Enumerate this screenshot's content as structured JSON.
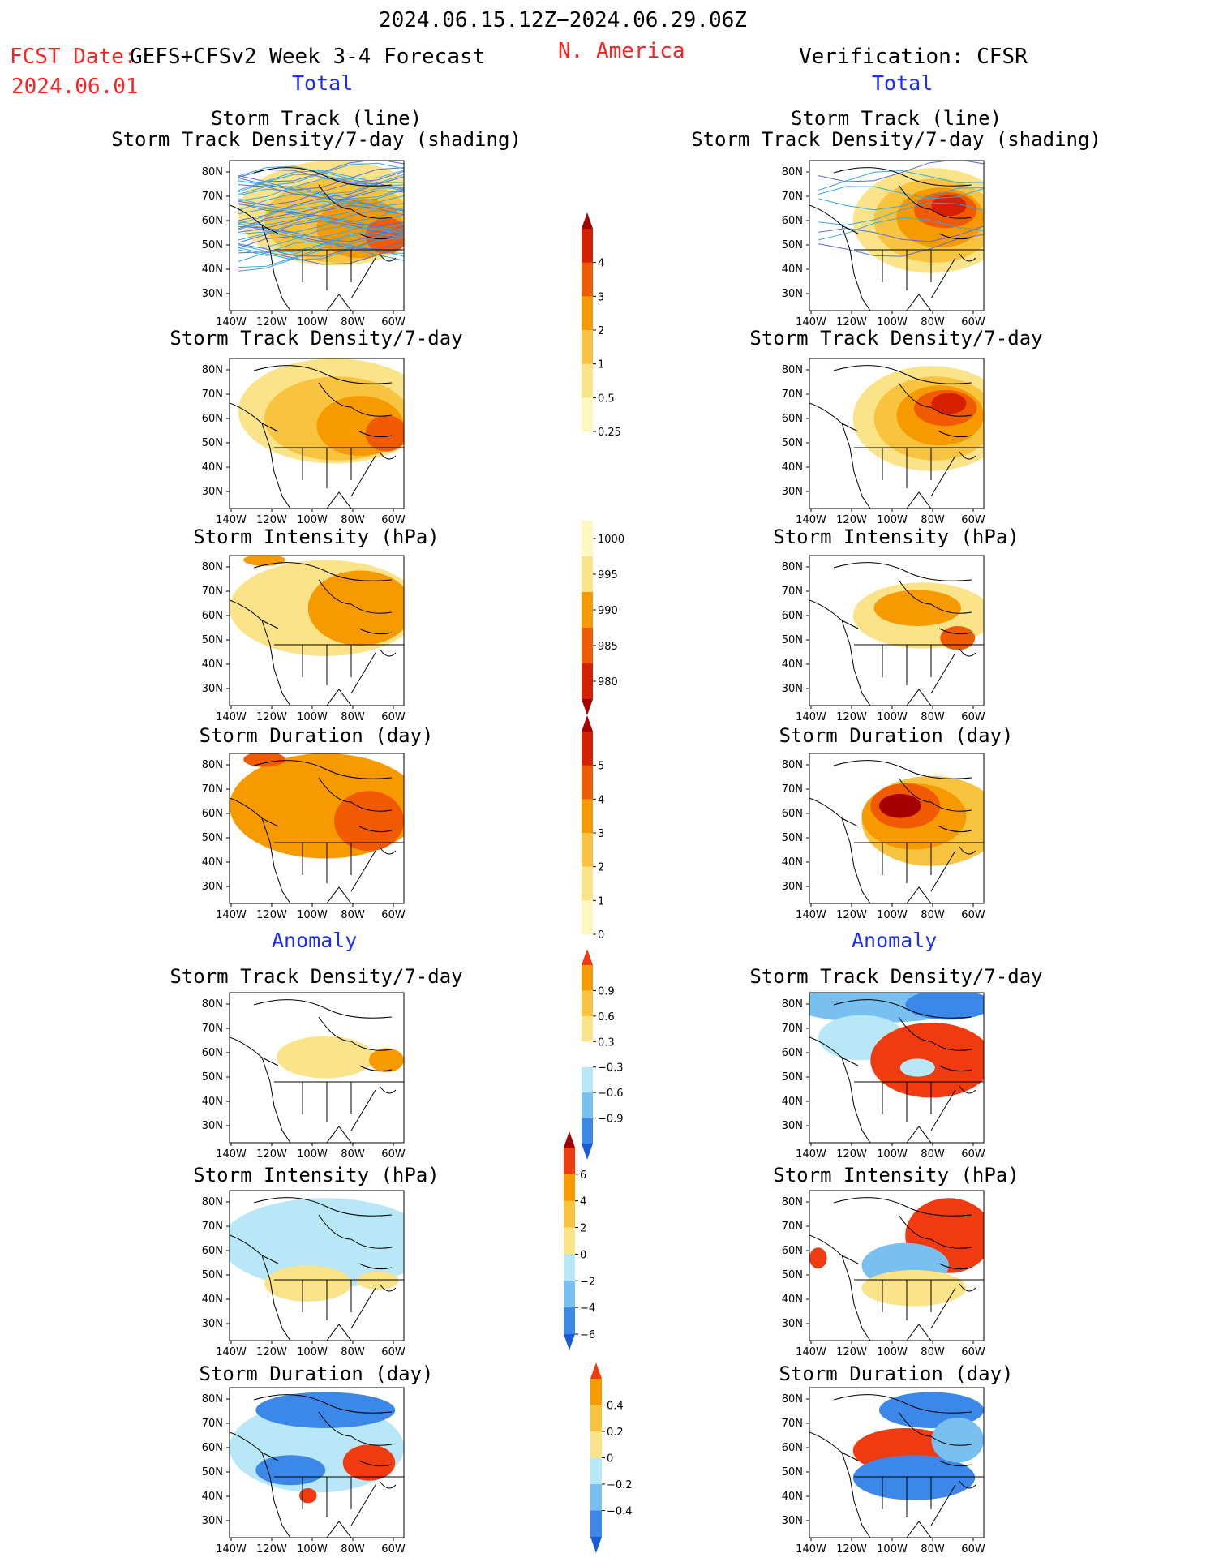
{
  "header": {
    "period": "2024.06.15.12Z−2024.06.29.06Z",
    "fcst_date_label": "FCST Date:",
    "forecast_name": "GEFS+CFSv2 Week 3-4 Forecast",
    "fcst_date": "2024.06.01",
    "region": "N. America",
    "verification": "Verification: CFSR"
  },
  "sections": {
    "total_left": "Total",
    "total_right": "Total",
    "anomaly_left": "Anomaly",
    "anomaly_right": "Anomaly"
  },
  "axes": {
    "lat_labels": [
      "80N",
      "70N",
      "60N",
      "50N",
      "40N",
      "30N"
    ],
    "lon_labels": [
      "140W",
      "120W",
      "100W",
      "80W",
      "60W"
    ]
  },
  "panels": [
    {
      "id": "fc-track",
      "title1": "Storm Track (line)",
      "title2": "Storm Track Density/7-day (shading)",
      "scheme": "fc-density",
      "tracks": true
    },
    {
      "id": "ob-track",
      "title1": "Storm Track (line)",
      "title2": "Storm Track Density/7-day (shading)",
      "scheme": "ob-density",
      "tracks": true
    },
    {
      "id": "fc-density",
      "title1": "Storm Track Density/7-day",
      "scheme": "fc-density"
    },
    {
      "id": "ob-density",
      "title1": "Storm Track Density/7-day",
      "scheme": "ob-density"
    },
    {
      "id": "fc-intensity",
      "title1": "Storm Intensity (hPa)",
      "scheme": "fc-intensity"
    },
    {
      "id": "ob-intensity",
      "title1": "Storm Intensity (hPa)",
      "scheme": "ob-intensity"
    },
    {
      "id": "fc-duration",
      "title1": "Storm Duration (day)",
      "scheme": "fc-duration"
    },
    {
      "id": "ob-duration",
      "title1": "Storm Duration (day)",
      "scheme": "ob-duration"
    },
    {
      "id": "fc-density-anom",
      "title1": "Storm Track Density/7-day",
      "scheme": "fc-density-anom"
    },
    {
      "id": "ob-density-anom",
      "title1": "Storm Track Density/7-day",
      "scheme": "ob-density-anom"
    },
    {
      "id": "fc-intensity-anom",
      "title1": "Storm Intensity (hPa)",
      "scheme": "fc-intensity-anom"
    },
    {
      "id": "ob-intensity-anom",
      "title1": "Storm Intensity (hPa)",
      "scheme": "ob-intensity-anom"
    },
    {
      "id": "fc-duration-anom",
      "title1": "Storm Duration (day)",
      "scheme": "fc-duration-anom"
    },
    {
      "id": "ob-duration-anom",
      "title1": "Storm Duration (day)",
      "scheme": "ob-duration-anom"
    }
  ],
  "colorbars": [
    {
      "id": "density",
      "labels": [
        "4",
        "3",
        "2",
        "1",
        "0.5",
        "0.25"
      ],
      "colors": [
        "#a50000",
        "#d62000",
        "#f05a00",
        "#f79a00",
        "#f8c440",
        "#fbe38a",
        "#fff8c0"
      ],
      "top_arrow": true,
      "bottom_arrow": false
    },
    {
      "id": "intensity",
      "labels": [
        "1000",
        "995",
        "990",
        "985",
        "980"
      ],
      "colors": [
        "#fff8c0",
        "#fbe38a",
        "#f79a00",
        "#f05a00",
        "#d62000",
        "#a50000"
      ],
      "top_arrow": false,
      "bottom_arrow": true
    },
    {
      "id": "duration",
      "labels": [
        "5",
        "4",
        "3",
        "2",
        "1",
        "0"
      ],
      "colors": [
        "#a50000",
        "#d62000",
        "#f05a00",
        "#f79a00",
        "#f8c440",
        "#fbe38a",
        "#fff8c0"
      ],
      "top_arrow": true,
      "bottom_arrow": false
    },
    {
      "id": "density-anom",
      "labels": [
        "0.9",
        "0.6",
        "0.3",
        "−0.3",
        "−0.6",
        "−0.9"
      ],
      "colors": [
        "#f03a10",
        "#f79a00",
        "#f8c440",
        "#fbe38a",
        "#ffffff",
        "#b8e8f8",
        "#78c0f0",
        "#3c88e8",
        "#1a5ad8"
      ],
      "top_arrow": true,
      "bottom_arrow": true
    },
    {
      "id": "intensity-anom",
      "labels": [
        "6",
        "4",
        "2",
        "0",
        "−2",
        "−4",
        "−6"
      ],
      "colors": [
        "#a50000",
        "#f03a10",
        "#f79a00",
        "#f8c440",
        "#fbe38a",
        "#b8e8f8",
        "#78c0f0",
        "#3c88e8",
        "#1a5ad8"
      ],
      "top_arrow": true,
      "bottom_arrow": true
    },
    {
      "id": "duration-anom",
      "labels": [
        "0.4",
        "0.2",
        "0",
        "−0.2",
        "−0.4"
      ],
      "colors": [
        "#f03a10",
        "#f79a00",
        "#f8c440",
        "#fbe38a",
        "#b8e8f8",
        "#78c0f0",
        "#3c88e8",
        "#1a5ad8"
      ],
      "top_arrow": true,
      "bottom_arrow": true
    }
  ]
}
